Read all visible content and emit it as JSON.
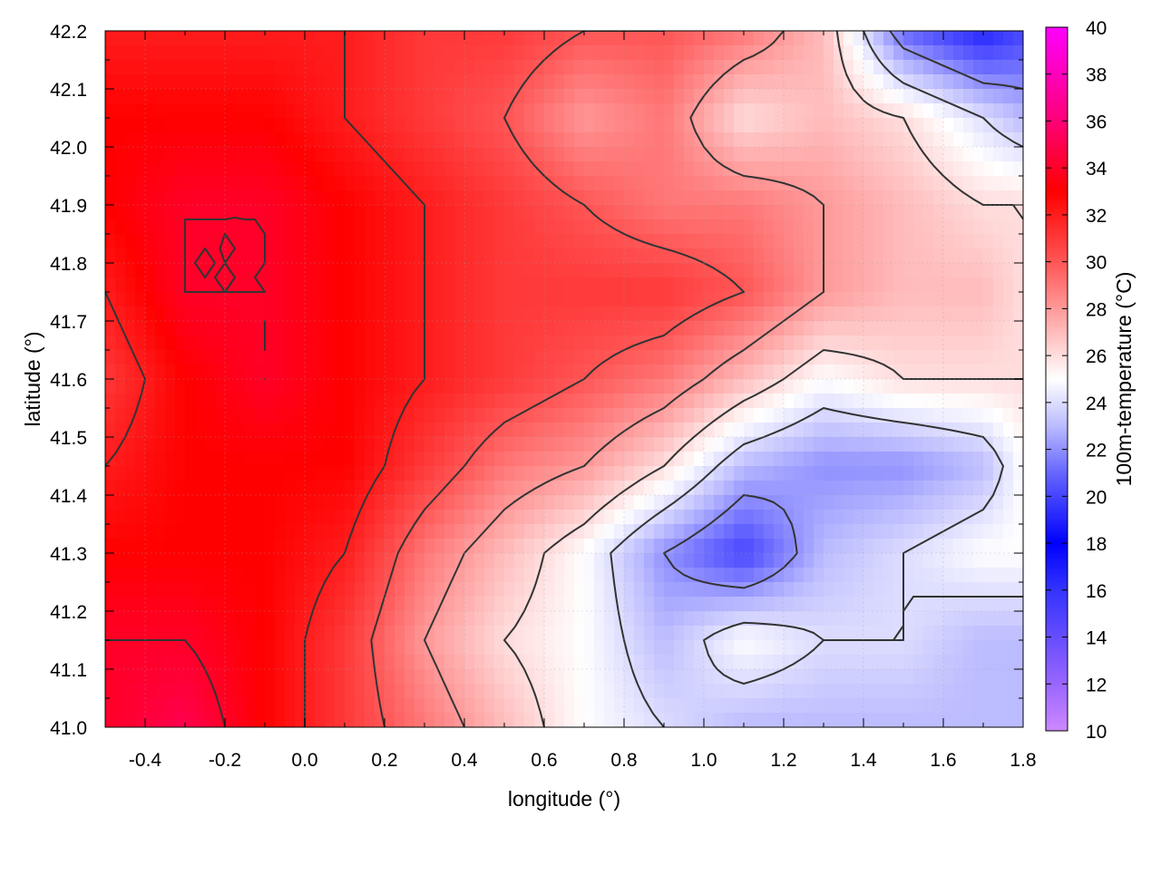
{
  "chart_data": {
    "type": "heatmap",
    "xlabel": "longitude (°)",
    "ylabel": "latitude (°)",
    "colorbar_label": "100m-temperature (°C)",
    "xlim": [
      -0.5,
      1.8
    ],
    "ylim": [
      41.0,
      42.2
    ],
    "x_ticks": [
      "-0.4",
      "-0.2",
      "0.0",
      "0.2",
      "0.4",
      "0.6",
      "0.8",
      "1.0",
      "1.2",
      "1.4",
      "1.6",
      "1.8"
    ],
    "y_ticks": [
      "41.0",
      "41.1",
      "41.2",
      "41.3",
      "41.4",
      "41.5",
      "41.6",
      "41.7",
      "41.8",
      "41.9",
      "42.0",
      "42.1",
      "42.2"
    ],
    "colorbar": {
      "range": [
        10,
        40
      ],
      "ticks": [
        "10",
        "12",
        "14",
        "16",
        "18",
        "20",
        "22",
        "24",
        "26",
        "28",
        "30",
        "32",
        "34",
        "36",
        "38",
        "40"
      ],
      "stops": [
        {
          "value": 10,
          "color": "#cc88ff"
        },
        {
          "value": 12,
          "color": "#9966ff"
        },
        {
          "value": 16,
          "color": "#3333ff"
        },
        {
          "value": 18,
          "color": "#0000ff"
        },
        {
          "value": 21,
          "color": "#6666ff"
        },
        {
          "value": 23,
          "color": "#bbbbff"
        },
        {
          "value": 25,
          "color": "#ffffff"
        },
        {
          "value": 27,
          "color": "#ffbbbb"
        },
        {
          "value": 30,
          "color": "#ff5555"
        },
        {
          "value": 33,
          "color": "#ff0000"
        },
        {
          "value": 36,
          "color": "#ff0077"
        },
        {
          "value": 40,
          "color": "#ff00ff"
        }
      ]
    },
    "grid": true,
    "contour_color": "#333333",
    "temperature_field": {
      "lon": [
        -0.5,
        -0.3,
        -0.1,
        0.1,
        0.3,
        0.5,
        0.7,
        0.9,
        1.1,
        1.3,
        1.5,
        1.7,
        1.8
      ],
      "lat": [
        42.2,
        42.05,
        41.9,
        41.75,
        41.6,
        41.45,
        41.3,
        41.15,
        41.0
      ],
      "values_celsius": [
        [
          32,
          32,
          32,
          32,
          31,
          31,
          30,
          30,
          29,
          27,
          21,
          19,
          20
        ],
        [
          33,
          33,
          33,
          32,
          31,
          30,
          28,
          29,
          26,
          27,
          26,
          24,
          23
        ],
        [
          33,
          34,
          34,
          33,
          32,
          31,
          30,
          29,
          29,
          28,
          27,
          26,
          26
        ],
        [
          32,
          34,
          34,
          33,
          32,
          31,
          31,
          31,
          30,
          28,
          27,
          27,
          26
        ],
        [
          31,
          33,
          34,
          33,
          32,
          31,
          30,
          29,
          27,
          25,
          26,
          26,
          26
        ],
        [
          32,
          33,
          33,
          33,
          31,
          29,
          28,
          26,
          23,
          22,
          22,
          23,
          25
        ],
        [
          33,
          33,
          33,
          32,
          29,
          27,
          25,
          22,
          20,
          23,
          24,
          25,
          25
        ],
        [
          34,
          34,
          33,
          31,
          28,
          26,
          25,
          23,
          25,
          24,
          24,
          23,
          23
        ],
        [
          34,
          35,
          33,
          31,
          29,
          27,
          25,
          24,
          23,
          23,
          23,
          23,
          23
        ]
      ]
    }
  }
}
